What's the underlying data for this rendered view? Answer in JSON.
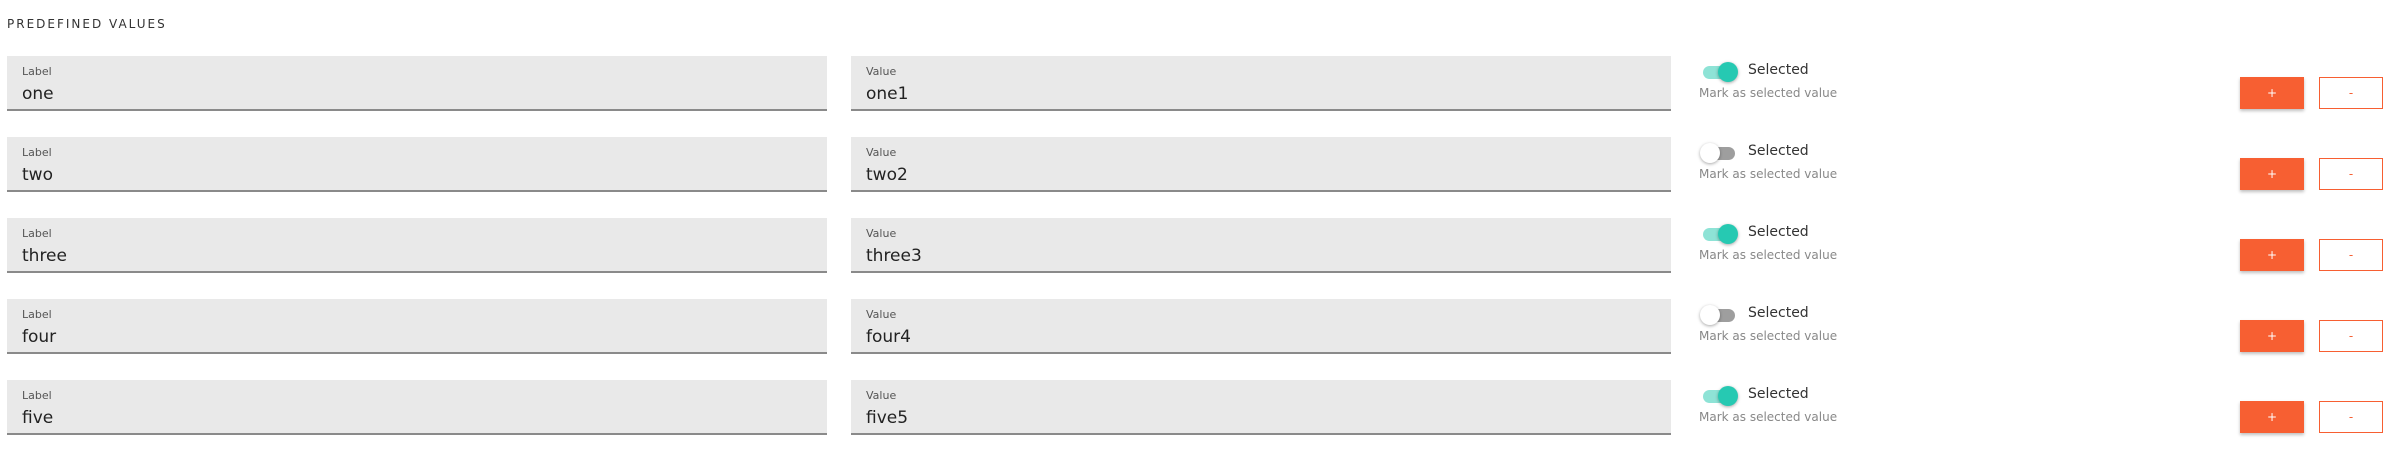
{
  "section_title": "PREDEFINED VALUES",
  "colors": {
    "accent": "#f75f32",
    "toggle_on": "#26c9b2",
    "toggle_off": "#9e9e9e"
  },
  "label_caption": "Label",
  "value_caption": "Value",
  "toggle_label": "Selected",
  "toggle_hint": "Mark as selected value",
  "add_label": "+",
  "remove_label": "-",
  "rows": [
    {
      "label": "one",
      "value": "one1",
      "selected": true
    },
    {
      "label": "two",
      "value": "two2",
      "selected": false
    },
    {
      "label": "three",
      "value": "three3",
      "selected": true
    },
    {
      "label": "four",
      "value": "four4",
      "selected": false
    },
    {
      "label": "five",
      "value": "five5",
      "selected": true
    }
  ]
}
